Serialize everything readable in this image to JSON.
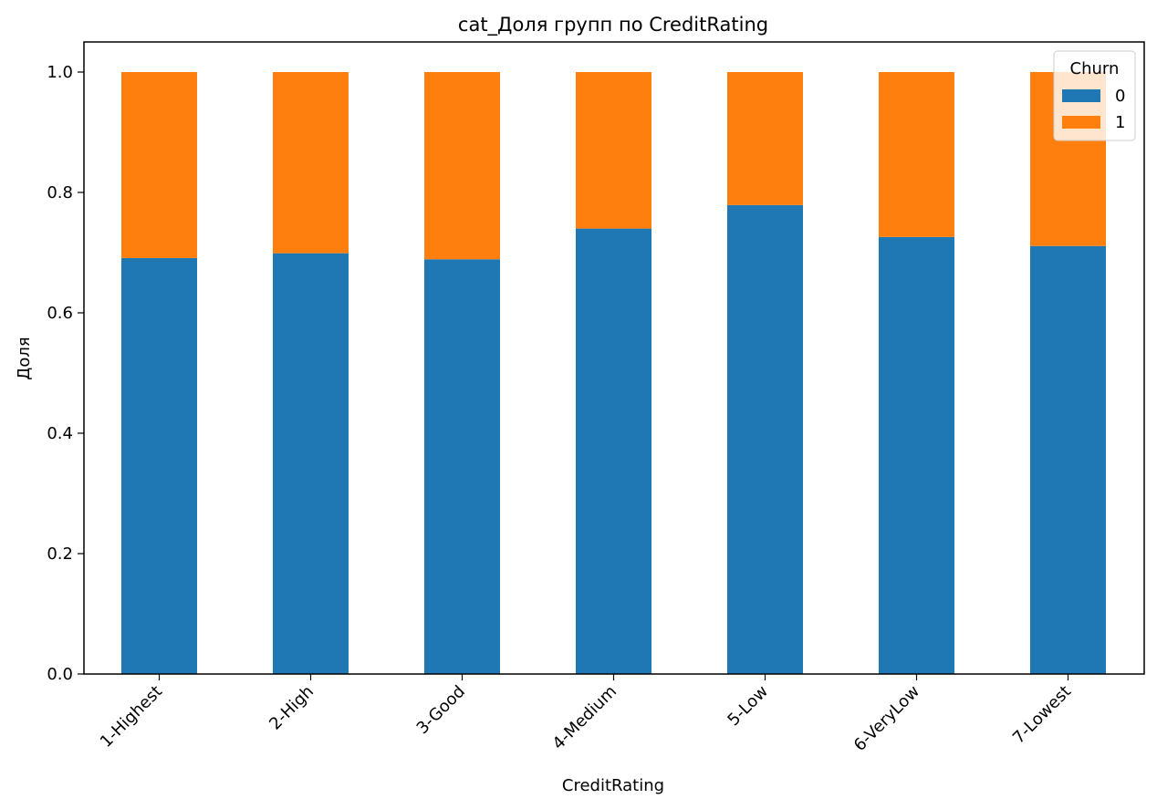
{
  "chart_data": {
    "type": "bar",
    "stacked": true,
    "title": "cat_Доля групп по CreditRating",
    "xlabel": "CreditRating",
    "ylabel": "Доля",
    "ylim": [
      0,
      1.05
    ],
    "yticks": [
      "0.0",
      "0.2",
      "0.4",
      "0.6",
      "0.8",
      "1.0"
    ],
    "categories": [
      "1-Highest",
      "2-High",
      "3-Good",
      "4-Medium",
      "5-Low",
      "6-VeryLow",
      "7-Lowest"
    ],
    "series": [
      {
        "name": "0",
        "color": "#1f77b4",
        "values": [
          0.691,
          0.699,
          0.689,
          0.74,
          0.779,
          0.726,
          0.711
        ]
      },
      {
        "name": "1",
        "color": "#ff7f0e",
        "values": [
          0.309,
          0.301,
          0.311,
          0.26,
          0.221,
          0.274,
          0.289
        ]
      }
    ],
    "legend": {
      "title": "Churn",
      "placement": "top-right"
    },
    "grid": false
  }
}
